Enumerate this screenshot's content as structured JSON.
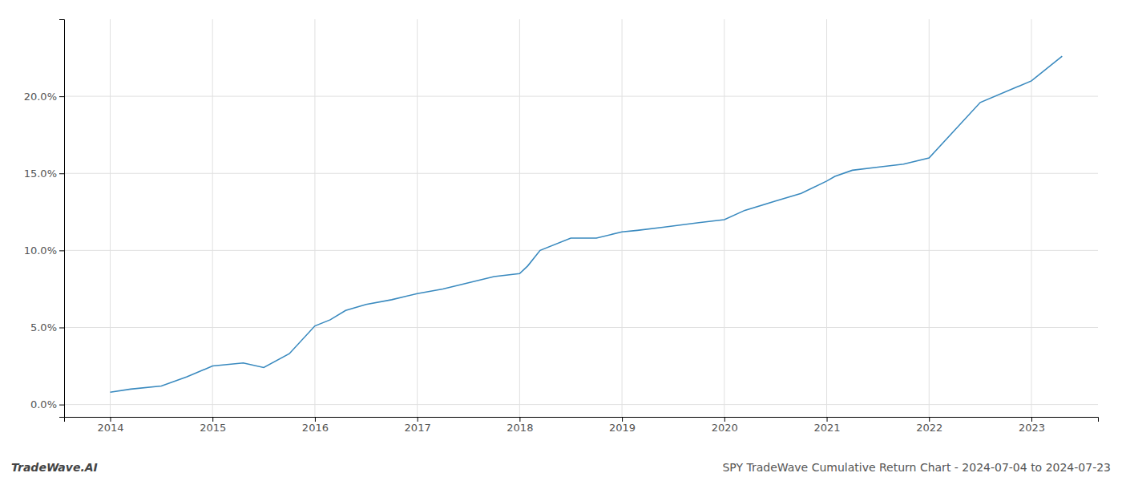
{
  "chart_data": {
    "type": "line",
    "title": "SPY TradeWave Cumulative Return Chart - 2024-07-04 to 2024-07-23",
    "annotations": [
      "TradeWave.AI"
    ],
    "color": "#3a8abf",
    "line_style": "solid",
    "grid": true,
    "x": [
      2014.0,
      2014.2,
      2014.5,
      2014.75,
      2015.0,
      2015.3,
      2015.5,
      2015.75,
      2016.0,
      2016.15,
      2016.3,
      2016.5,
      2016.75,
      2017.0,
      2017.25,
      2017.5,
      2017.75,
      2018.0,
      2018.08,
      2018.2,
      2018.5,
      2018.75,
      2019.0,
      2019.15,
      2019.4,
      2019.75,
      2020.0,
      2020.2,
      2020.5,
      2020.75,
      2021.0,
      2021.08,
      2021.25,
      2021.5,
      2021.75,
      2022.0,
      2022.5,
      2023.0,
      2023.3
    ],
    "values": [
      0.008,
      0.01,
      0.012,
      0.018,
      0.025,
      0.027,
      0.024,
      0.033,
      0.051,
      0.055,
      0.061,
      0.065,
      0.068,
      0.072,
      0.075,
      0.079,
      0.083,
      0.085,
      0.09,
      0.1,
      0.108,
      0.108,
      0.112,
      0.113,
      0.115,
      0.118,
      0.12,
      0.126,
      0.132,
      0.137,
      0.145,
      0.148,
      0.152,
      0.154,
      0.156,
      0.16,
      0.196,
      0.21,
      0.226
    ],
    "xlim": [
      2013.55,
      2023.65
    ],
    "xticks": [
      2014,
      2015,
      2016,
      2017,
      2018,
      2019,
      2020,
      2021,
      2022,
      2023
    ],
    "ylim": [
      -0.008,
      0.25
    ],
    "yticks": [
      {
        "value": 0.0,
        "label": "0.0%"
      },
      {
        "value": 0.05,
        "label": "5.0%"
      },
      {
        "value": 0.1,
        "label": "10.0%"
      },
      {
        "value": 0.15,
        "label": "15.0%"
      },
      {
        "value": 0.2,
        "label": "20.0%"
      }
    ]
  }
}
